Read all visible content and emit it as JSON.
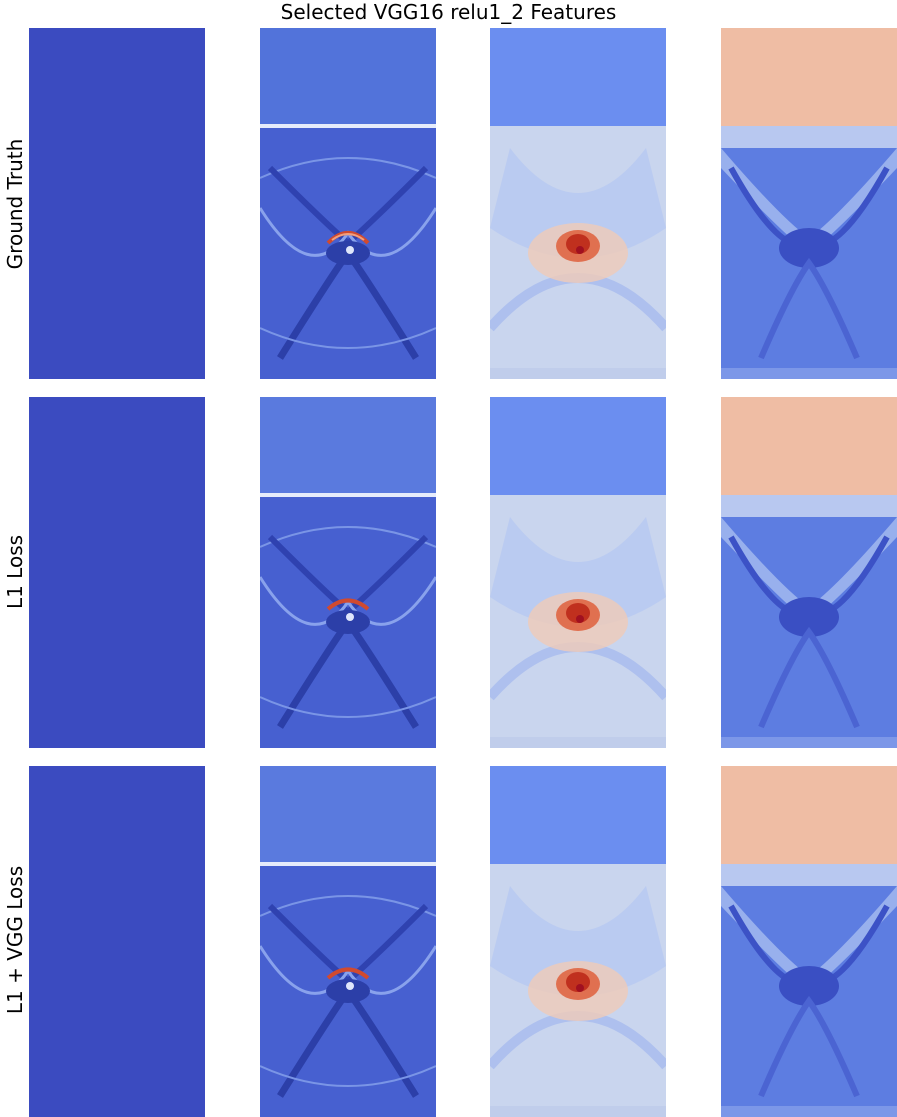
{
  "title": "Selected VGG16 relu1_2 Features",
  "rows": [
    {
      "label": "Ground Truth"
    },
    {
      "label": "L1 Loss"
    },
    {
      "label": "L1 + VGG Loss"
    }
  ],
  "colormap": {
    "low": "#3b4cc0",
    "mid": "#dddddd",
    "high": "#b40426"
  },
  "colors": {
    "uniform_blue": "#3b4bc0",
    "feature2_bg": "#4a63d3",
    "feature3_top": "#6b8ef0",
    "feature3_body": "#c9d5ee",
    "feature3_hot": "#d13b2a",
    "feature4_top": "#efbda4",
    "feature4_body": "#5d7de1"
  }
}
